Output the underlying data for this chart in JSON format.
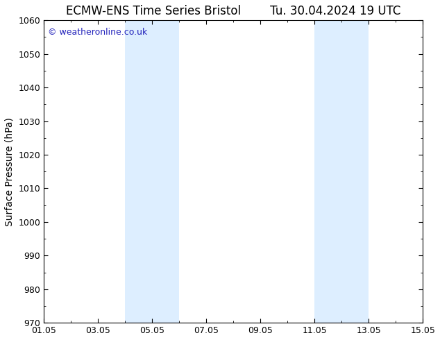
{
  "title_left": "ECMW-ENS Time Series Bristol",
  "title_right": "Tu. 30.04.2024 19 UTC",
  "ylabel": "Surface Pressure (hPa)",
  "ylim": [
    970,
    1060
  ],
  "yticks": [
    970,
    980,
    990,
    1000,
    1010,
    1020,
    1030,
    1040,
    1050,
    1060
  ],
  "xlim_start": 0,
  "xlim_end": 14,
  "xtick_labels": [
    "01.05",
    "03.05",
    "05.05",
    "07.05",
    "09.05",
    "11.05",
    "13.05",
    "15.05"
  ],
  "xtick_positions": [
    0,
    2,
    4,
    6,
    8,
    10,
    12,
    14
  ],
  "shaded_regions": [
    {
      "x_start": 3.0,
      "x_end": 5.0
    },
    {
      "x_start": 10.0,
      "x_end": 12.0
    }
  ],
  "shade_color": "#ddeeff",
  "background_color": "#ffffff",
  "watermark_text": "© weatheronline.co.uk",
  "watermark_color": "#2222bb",
  "title_fontsize": 12,
  "axis_fontsize": 10,
  "tick_fontsize": 9,
  "watermark_fontsize": 9
}
